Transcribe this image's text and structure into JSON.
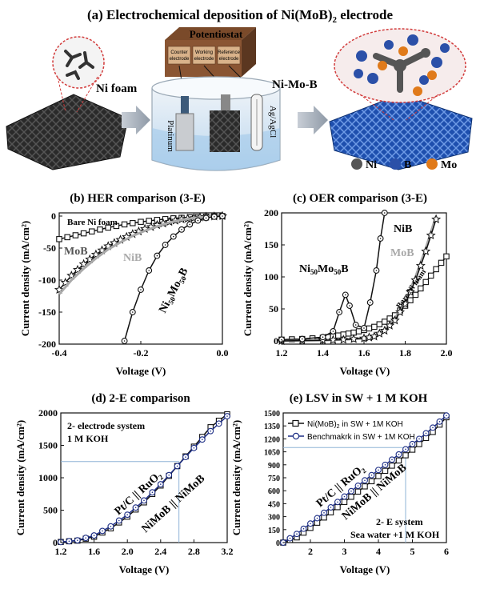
{
  "figure_title": "(a) Electrochemical deposition of Ni(MoB)",
  "figure_title_sub": "2",
  "figure_title_end": " electrode",
  "panel_a": {
    "ni_foam": "Ni foam",
    "potentiostat": "Potentiostat",
    "counter": [
      "Counter",
      "electrode"
    ],
    "working": [
      "Working",
      "electrode"
    ],
    "reference": [
      "Reference",
      "electrode"
    ],
    "platinum": "Platinum",
    "agagcl": "Ag/AgCl",
    "product": "Ni-Mo-B",
    "legend": [
      {
        "label": "Ni",
        "color": "#555555"
      },
      {
        "label": "B",
        "color": "#2b50a8"
      },
      {
        "label": "Mo",
        "color": "#e07a1a"
      }
    ]
  },
  "chart_data": [
    {
      "id": "b",
      "type": "line",
      "title": "(b) HER comparison (3-E)",
      "xlabel": "Voltage (V)",
      "ylabel": "Current density (mA/cm²)",
      "xlim": [
        -0.4,
        0.0
      ],
      "ylim": [
        -200,
        5
      ],
      "xticks": [
        "-0.4",
        "-0.2",
        "0.0"
      ],
      "yticks": [
        "-200",
        "-150",
        "-100",
        "-50",
        "0"
      ],
      "series": [
        {
          "name": "Bare Ni foam",
          "color": "#111111",
          "marker": "square",
          "x": [
            -0.4,
            -0.36,
            -0.32,
            -0.28,
            -0.24,
            -0.2,
            -0.16,
            -0.12,
            -0.08,
            -0.04,
            0.0
          ],
          "y": [
            -36,
            -30,
            -24,
            -18,
            -13,
            -9,
            -6,
            -3.5,
            -2,
            -1,
            0
          ]
        },
        {
          "name": "MoB",
          "color": "#111111",
          "marker": "star",
          "x": [
            -0.4,
            -0.37,
            -0.34,
            -0.31,
            -0.28,
            -0.25,
            -0.22,
            -0.19,
            -0.16,
            -0.13,
            -0.1,
            -0.07,
            -0.04,
            0.0
          ],
          "y": [
            -115,
            -93,
            -75,
            -60,
            -47,
            -37,
            -28,
            -20,
            -14,
            -9,
            -5,
            -3,
            -1,
            0
          ]
        },
        {
          "name": "NiB",
          "color": "#a9a9a9",
          "marker": "none",
          "x": [
            -0.4,
            -0.37,
            -0.34,
            -0.31,
            -0.28,
            -0.25,
            -0.22,
            -0.19,
            -0.16,
            -0.13,
            -0.1,
            -0.07,
            -0.04,
            0.0
          ],
          "y": [
            -122,
            -100,
            -82,
            -66,
            -52,
            -41,
            -31,
            -23,
            -16,
            -10,
            -6,
            -3,
            -1,
            0
          ]
        },
        {
          "name": "Ni50Mo50B",
          "color": "#111111",
          "marker": "circle",
          "x": [
            -0.24,
            -0.22,
            -0.2,
            -0.18,
            -0.16,
            -0.14,
            -0.12,
            -0.1,
            -0.08,
            -0.06,
            -0.04,
            -0.02,
            0.0
          ],
          "y": [
            -195,
            -150,
            -115,
            -85,
            -62,
            -45,
            -32,
            -21,
            -13,
            -7,
            -3,
            -1,
            0
          ]
        }
      ],
      "labels": [
        "Bare Ni foam",
        "MoB",
        "NiB",
        "Ni",
        "50",
        "Mo",
        "50",
        "B"
      ]
    },
    {
      "id": "c",
      "type": "line",
      "title": "(c) OER comparison (3-E)",
      "xlabel": "Voltage (V)",
      "ylabel": "Current density (mA/cm²)",
      "xlim": [
        1.2,
        2.0
      ],
      "ylim": [
        -5,
        200
      ],
      "xticks": [
        "1.2",
        "1.4",
        "1.6",
        "1.8",
        "2.0"
      ],
      "yticks": [
        "0",
        "50",
        "100",
        "150",
        "200"
      ],
      "series": [
        {
          "name": "Bare Ni foam",
          "color": "#111111",
          "marker": "square",
          "x": [
            1.2,
            1.3,
            1.4,
            1.45,
            1.5,
            1.55,
            1.6,
            1.65,
            1.7,
            1.75,
            1.8,
            1.85,
            1.9,
            1.95,
            2.0
          ],
          "y": [
            2,
            3,
            5,
            7,
            10,
            13,
            17,
            22,
            30,
            40,
            55,
            72,
            92,
            112,
            132
          ]
        },
        {
          "name": "MoB",
          "color": "#a9a9a9",
          "marker": "none",
          "x": [
            1.2,
            1.4,
            1.5,
            1.6,
            1.65,
            1.7,
            1.75,
            1.8,
            1.85,
            1.9,
            1.95
          ],
          "y": [
            0,
            1,
            2,
            4,
            8,
            18,
            35,
            62,
            100,
            145,
            195
          ]
        },
        {
          "name": "NiB",
          "color": "#111111",
          "marker": "star",
          "x": [
            1.2,
            1.4,
            1.5,
            1.6,
            1.65,
            1.7,
            1.75,
            1.8,
            1.85,
            1.9,
            1.95
          ],
          "y": [
            0,
            1,
            2,
            4,
            7,
            16,
            32,
            58,
            95,
            140,
            190
          ]
        },
        {
          "name": "Ni50Mo50B",
          "color": "#111111",
          "marker": "circle",
          "x": [
            1.2,
            1.3,
            1.4,
            1.45,
            1.48,
            1.51,
            1.53,
            1.56,
            1.6,
            1.63,
            1.66,
            1.68,
            1.7
          ],
          "y": [
            2,
            3,
            6,
            15,
            45,
            72,
            55,
            25,
            20,
            60,
            110,
            160,
            200
          ]
        }
      ],
      "labels": [
        "NiB",
        "MoB",
        "Bare Ni foam",
        "Ni",
        "50",
        "Mo",
        "50",
        "B"
      ]
    },
    {
      "id": "d",
      "type": "line",
      "title": "(d) 2-E comparison",
      "xlabel": "Voltage (V)",
      "ylabel": "Current density (mA/cm²)",
      "xlim": [
        1.2,
        3.2
      ],
      "ylim": [
        0,
        2000
      ],
      "xticks": [
        "1.2",
        "1.6",
        "2.0",
        "2.4",
        "2.8",
        "3.2"
      ],
      "yticks": [
        "0",
        "500",
        "1000",
        "1500",
        "2000"
      ],
      "guide": {
        "x": 2.62,
        "y": 1250
      },
      "series": [
        {
          "name": "NiMoB || NiMoB",
          "color": "#111111",
          "marker": "square",
          "x": [
            1.2,
            1.4,
            1.6,
            1.8,
            2.0,
            2.2,
            2.4,
            2.6,
            2.8,
            3.0,
            3.2
          ],
          "y": [
            10,
            30,
            90,
            220,
            400,
            620,
            880,
            1180,
            1480,
            1780,
            1980
          ]
        },
        {
          "name": "Pt/C || RuO2",
          "color": "#1e2f86",
          "marker": "circle",
          "x": [
            1.2,
            1.4,
            1.6,
            1.8,
            2.0,
            2.2,
            2.4,
            2.6,
            2.8,
            3.0,
            3.2
          ],
          "y": [
            8,
            35,
            110,
            250,
            430,
            650,
            900,
            1180,
            1460,
            1720,
            1950
          ]
        }
      ],
      "labels": [
        "2- electrode system",
        "1 M KOH",
        "Pt/C || RuO",
        "2",
        "NiMoB || NiMoB"
      ]
    },
    {
      "id": "e",
      "type": "line",
      "title": "(e) LSV in SW + 1 M KOH",
      "xlabel": "Voltage (V)",
      "ylabel": "Current density (mA/cm²)",
      "xlim": [
        1.2,
        6.0
      ],
      "ylim": [
        0,
        1500
      ],
      "xticks": [
        "2",
        "3",
        "4",
        "5",
        "6"
      ],
      "yticks": [
        "0",
        "150",
        "300",
        "450",
        "600",
        "750",
        "900",
        "1050",
        "1200",
        "1350",
        "1500"
      ],
      "guide": {
        "x": 4.8,
        "y": 1100
      },
      "series": [
        {
          "name": "Ni(MoB)2 in SW + 1M KOH",
          "color": "#111111",
          "marker": "square",
          "x": [
            1.2,
            1.6,
            2.0,
            2.4,
            2.8,
            3.2,
            3.6,
            4.0,
            4.4,
            4.8,
            5.2,
            5.6,
            6.0
          ],
          "y": [
            0,
            60,
            170,
            290,
            410,
            530,
            650,
            770,
            890,
            1010,
            1140,
            1280,
            1450
          ]
        },
        {
          "name": "Benchmakrk in SW + 1M KOH",
          "color": "#1e2f86",
          "marker": "circle",
          "x": [
            1.2,
            1.6,
            2.0,
            2.4,
            2.8,
            3.2,
            3.6,
            4.0,
            4.4,
            4.8,
            5.2,
            5.6,
            6.0
          ],
          "y": [
            0,
            100,
            220,
            345,
            470,
            595,
            720,
            840,
            960,
            1080,
            1200,
            1330,
            1470
          ]
        }
      ],
      "legend_labels": [
        "Ni(MoB)",
        "2",
        " in SW + 1M KOH",
        "Benchmakrk in SW + 1M KOH"
      ],
      "labels": [
        "Pt/C || RuO",
        "2",
        "NiMoB || NiMoB",
        "2- E system",
        "Sea water +1 M KOH"
      ]
    }
  ]
}
